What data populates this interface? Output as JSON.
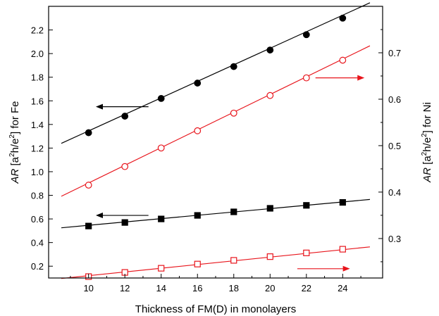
{
  "chart_data": {
    "type": "line",
    "xlabel": "Thickness of FM(D) in monolayers",
    "ylabel_left": {
      "main": "AR",
      "bracket_open": " [a",
      "sup1": "2",
      "mid": "h/e",
      "sup2": "2",
      "bracket_close": "] for Fe"
    },
    "ylabel_right": {
      "main": "AR",
      "bracket_open": " [a",
      "sup1": "2",
      "mid": "h/e",
      "sup2": "2",
      "bracket_close": "] for Ni"
    },
    "xlim": [
      7.8,
      26.2
    ],
    "ylim_left": [
      0.1,
      2.4
    ],
    "ylim_right": [
      0.215,
      0.8
    ],
    "x_ticks": [
      10,
      12,
      14,
      16,
      18,
      20,
      22,
      24
    ],
    "x_tick_labels": [
      "10",
      "12",
      "14",
      "16",
      "18",
      "20",
      "22",
      "24"
    ],
    "y_left_ticks": [
      0.2,
      0.4,
      0.6,
      0.8,
      1.0,
      1.2,
      1.4,
      1.6,
      1.8,
      2.0,
      2.2
    ],
    "y_left_tick_labels": [
      "0.2",
      "0.4",
      "0.6",
      "0.8",
      "1.0",
      "1.2",
      "1.4",
      "1.6",
      "1.8",
      "2.0",
      "2.2"
    ],
    "y_right_ticks": [
      0.3,
      0.4,
      0.5,
      0.6,
      0.7
    ],
    "y_right_tick_labels": [
      "0.3",
      "0.4",
      "0.5",
      "0.6",
      "0.7"
    ],
    "series": [
      {
        "axis": "left",
        "marker": "circle",
        "filled": true,
        "color": "#000000",
        "x": [
          10,
          12,
          14,
          16,
          18,
          20,
          22,
          24
        ],
        "y": [
          1.33,
          1.47,
          1.62,
          1.75,
          1.89,
          2.03,
          2.16,
          2.3
        ],
        "fit": {
          "x": [
            8.5,
            25.5
          ],
          "y": [
            1.24,
            2.43
          ]
        }
      },
      {
        "axis": "right",
        "marker": "circle",
        "filled": false,
        "color": "#e8141b",
        "x": [
          10,
          12,
          14,
          16,
          18,
          20,
          22,
          24
        ],
        "y": [
          0.415,
          0.455,
          0.495,
          0.532,
          0.57,
          0.608,
          0.646,
          0.684
        ],
        "fit": {
          "x": [
            8.5,
            25.5
          ],
          "y": [
            0.391,
            0.715
          ]
        }
      },
      {
        "axis": "left",
        "marker": "square",
        "filled": true,
        "color": "#000000",
        "x": [
          10,
          12,
          14,
          16,
          18,
          20,
          22,
          24
        ],
        "y": [
          0.54,
          0.57,
          0.6,
          0.63,
          0.66,
          0.69,
          0.715,
          0.74
        ],
        "fit": {
          "x": [
            8.5,
            25.5
          ],
          "y": [
            0.525,
            0.765
          ]
        }
      },
      {
        "axis": "right",
        "marker": "square",
        "filled": false,
        "color": "#e8141b",
        "x": [
          10,
          12,
          14,
          16,
          18,
          20,
          22,
          24
        ],
        "y": [
          0.218,
          0.227,
          0.236,
          0.245,
          0.253,
          0.261,
          0.269,
          0.277
        ],
        "fit": {
          "x": [
            8.5,
            25.5
          ],
          "y": [
            0.214,
            0.282
          ]
        }
      }
    ],
    "annotations": [
      {
        "type": "arrow",
        "direction": "left",
        "color": "#000000",
        "axis": "left",
        "x": [
          10.4,
          13.3
        ],
        "y": 1.55
      },
      {
        "type": "arrow",
        "direction": "right",
        "color": "#e8141b",
        "axis": "right",
        "x": [
          22.5,
          25.2
        ],
        "y": 0.646
      },
      {
        "type": "arrow",
        "direction": "left",
        "color": "#000000",
        "axis": "left",
        "x": [
          10.4,
          13.3
        ],
        "y": 0.63
      },
      {
        "type": "arrow",
        "direction": "right",
        "color": "#e8141b",
        "axis": "right",
        "x": [
          21.5,
          24.4
        ],
        "y": 0.235
      }
    ]
  }
}
